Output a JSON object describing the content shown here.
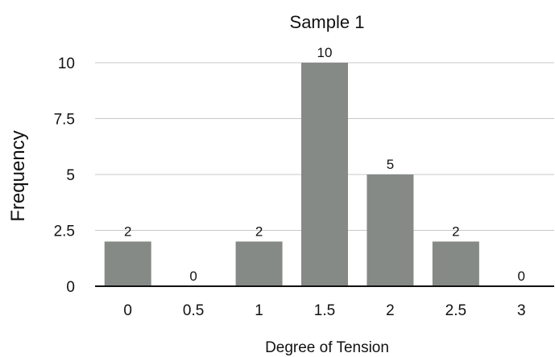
{
  "chart_data": {
    "type": "bar",
    "title": "Sample 1",
    "xlabel": "Degree of Tension",
    "ylabel": "Frequency",
    "categories": [
      "0",
      "0.5",
      "1",
      "1.5",
      "2",
      "2.5",
      "3"
    ],
    "values": [
      2,
      0,
      2,
      10,
      5,
      2,
      0
    ],
    "data_labels": [
      "2",
      "0",
      "2",
      "10",
      "5",
      "2",
      "0"
    ],
    "yticks": [
      "0",
      "2.5",
      "5",
      "7.5",
      "10"
    ],
    "ytick_values": [
      0,
      2.5,
      5,
      7.5,
      10
    ],
    "ylim": [
      0,
      10
    ],
    "grid": true,
    "legend": false,
    "colors": {
      "bar": "#868a87",
      "grid": "#c9c9c9",
      "baseline": "#111111"
    }
  }
}
